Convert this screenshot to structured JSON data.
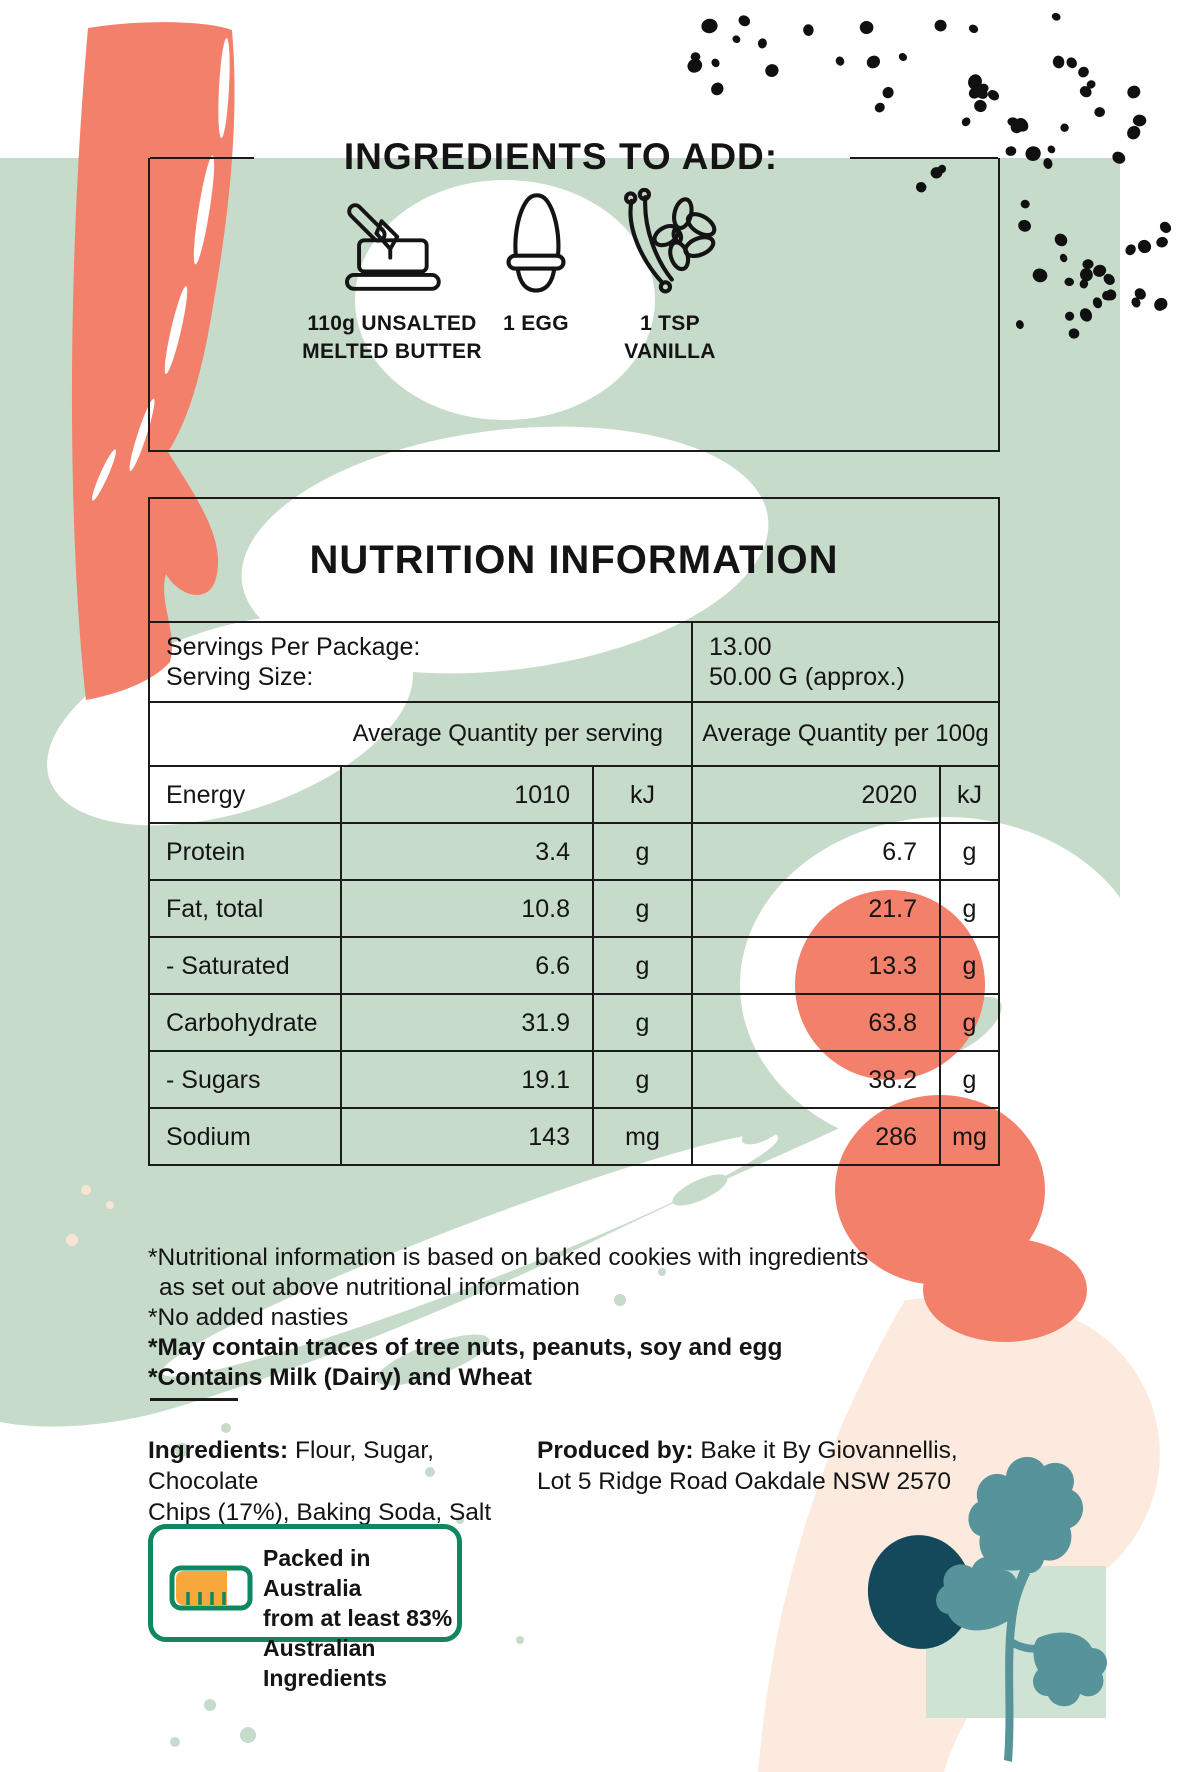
{
  "ibox": {
    "title": "INGREDIENTS TO ADD:",
    "items": [
      {
        "icon": "butter-dish-icon",
        "label": "110g UNSALTED\nMELTED BUTTER"
      },
      {
        "icon": "egg-icon",
        "label": "1 EGG"
      },
      {
        "icon": "vanilla-flower-icon",
        "label": "1 TSP\nVANILLA"
      }
    ]
  },
  "nut": {
    "title": "NUTRITION INFORMATION",
    "serv": {
      "l1": "Servings Per Package:",
      "l2": "Serving Size:",
      "v1": "13.00",
      "v2": "50.00 G (approx.)"
    },
    "cols": {
      "serving": "Average Quantity per serving",
      "per100": "Average Quantity per 100g"
    },
    "rows": [
      {
        "label": "Energy",
        "v1": "1010",
        "u1": "kJ",
        "v2": "2020",
        "u2": "kJ"
      },
      {
        "label": "Protein",
        "v1": "3.4",
        "u1": "g",
        "v2": "6.7",
        "u2": "g"
      },
      {
        "label": "Fat, total",
        "v1": "10.8",
        "u1": "g",
        "v2": "21.7",
        "u2": "g"
      },
      {
        "label": "- Saturated",
        "v1": "6.6",
        "u1": "g",
        "v2": "13.3",
        "u2": "g"
      },
      {
        "label": "Carbohydrate",
        "v1": "31.9",
        "u1": "g",
        "v2": "63.8",
        "u2": "g"
      },
      {
        "label": "- Sugars",
        "v1": "19.1",
        "u1": "g",
        "v2": "38.2",
        "u2": "g"
      },
      {
        "label": "Sodium",
        "v1": "143",
        "u1": "mg",
        "v2": "286",
        "u2": "mg"
      }
    ]
  },
  "notes": {
    "l1": "*Nutritional information is based on baked cookies with ingredients",
    "l2": "as set out above nutritional information",
    "l3": "*No added nasties",
    "l4": "*May contain traces of tree nuts, peanuts, soy and egg",
    "l5": "*Contains Milk (Dairy) and Wheat"
  },
  "ing": {
    "lead": "Ingredients:",
    "rest1": "Flour, Sugar, Chocolate",
    "line2": "Chips (17%), Baking Soda, Salt"
  },
  "prod": {
    "lead": "Produced by:",
    "rest1": "Bake it By Giovannellis,",
    "line2": "Lot 5 Ridge Road Oakdale NSW 2570"
  },
  "badge": {
    "l1": "Packed in Australia",
    "l2": "from at least 83%",
    "l3": "Australian Ingredients"
  },
  "colors": {
    "sage": "#c7dbca",
    "sage_light": "#cfe3d4",
    "coral": "#f2806a",
    "peach": "#fceade",
    "navy": "#14495c",
    "leaf": "#57939a",
    "badge_green": "#0f8760",
    "badge_orange": "#f7a73c",
    "ink": "#141414",
    "line": "#1b1b1b"
  }
}
